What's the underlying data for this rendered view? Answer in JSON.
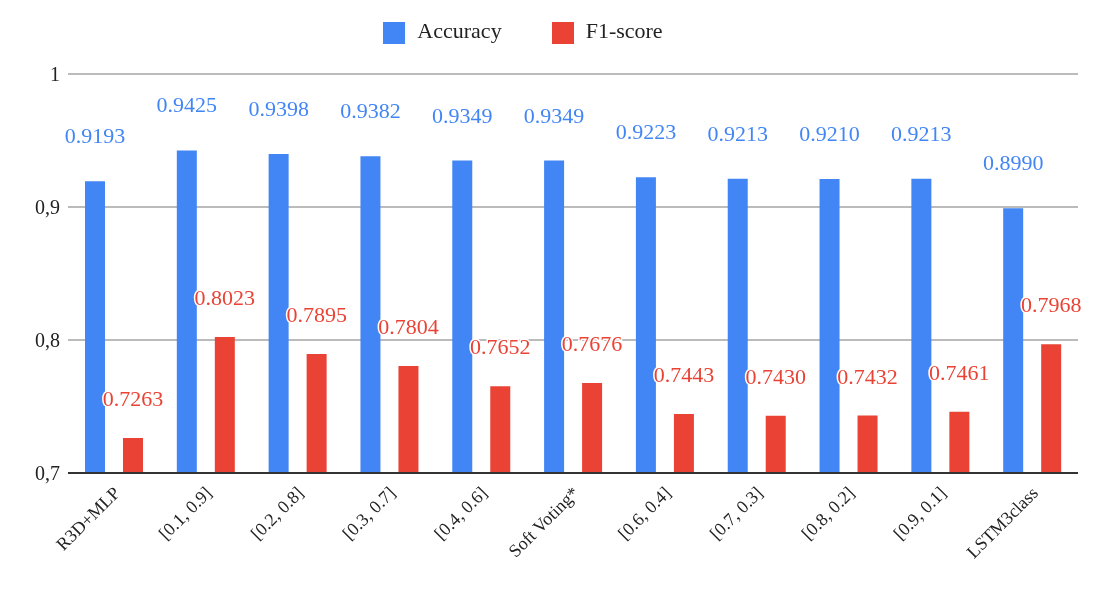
{
  "chart_data": {
    "type": "bar",
    "categories": [
      "R3D+MLP",
      "[0.1, 0.9]",
      "[0.2, 0.8]",
      "[0.3, 0.7]",
      "[0.4, 0.6]",
      "Soft Voting*",
      "[0.6, 0.4]",
      "[0.7, 0.3]",
      "[0.8, 0.2]",
      "[0.9, 0.1]",
      "LSTM3class"
    ],
    "series": [
      {
        "name": "Accuracy",
        "color": "#4285f4",
        "values": [
          0.9193,
          0.9425,
          0.9398,
          0.9382,
          0.9349,
          0.9349,
          0.9223,
          0.9213,
          0.921,
          0.9213,
          0.899
        ],
        "value_labels": [
          "0.9193",
          "0.9425",
          "0.9398",
          "0.9382",
          "0.9349",
          "0.9349",
          "0.9223",
          "0.9213",
          "0.9210",
          "0.9213",
          "0.8990"
        ]
      },
      {
        "name": "F1-score",
        "color": "#ea4335",
        "values": [
          0.7263,
          0.8023,
          0.7895,
          0.7804,
          0.7652,
          0.7676,
          0.7443,
          0.743,
          0.7432,
          0.7461,
          0.7968
        ],
        "value_labels": [
          "0.7263",
          "0.8023",
          "0.7895",
          "0.7804",
          "0.7652",
          "0.7676",
          "0.7443",
          "0.7430",
          "0.7432",
          "0.7461",
          "0.7968"
        ]
      }
    ],
    "ylim": [
      0.7,
      1
    ],
    "yticks": [
      {
        "value": 0.7,
        "label": "0,7"
      },
      {
        "value": 0.8,
        "label": "0,8"
      },
      {
        "value": 0.9,
        "label": "0,9"
      },
      1
    ],
    "grid": "y",
    "legend": "top"
  }
}
